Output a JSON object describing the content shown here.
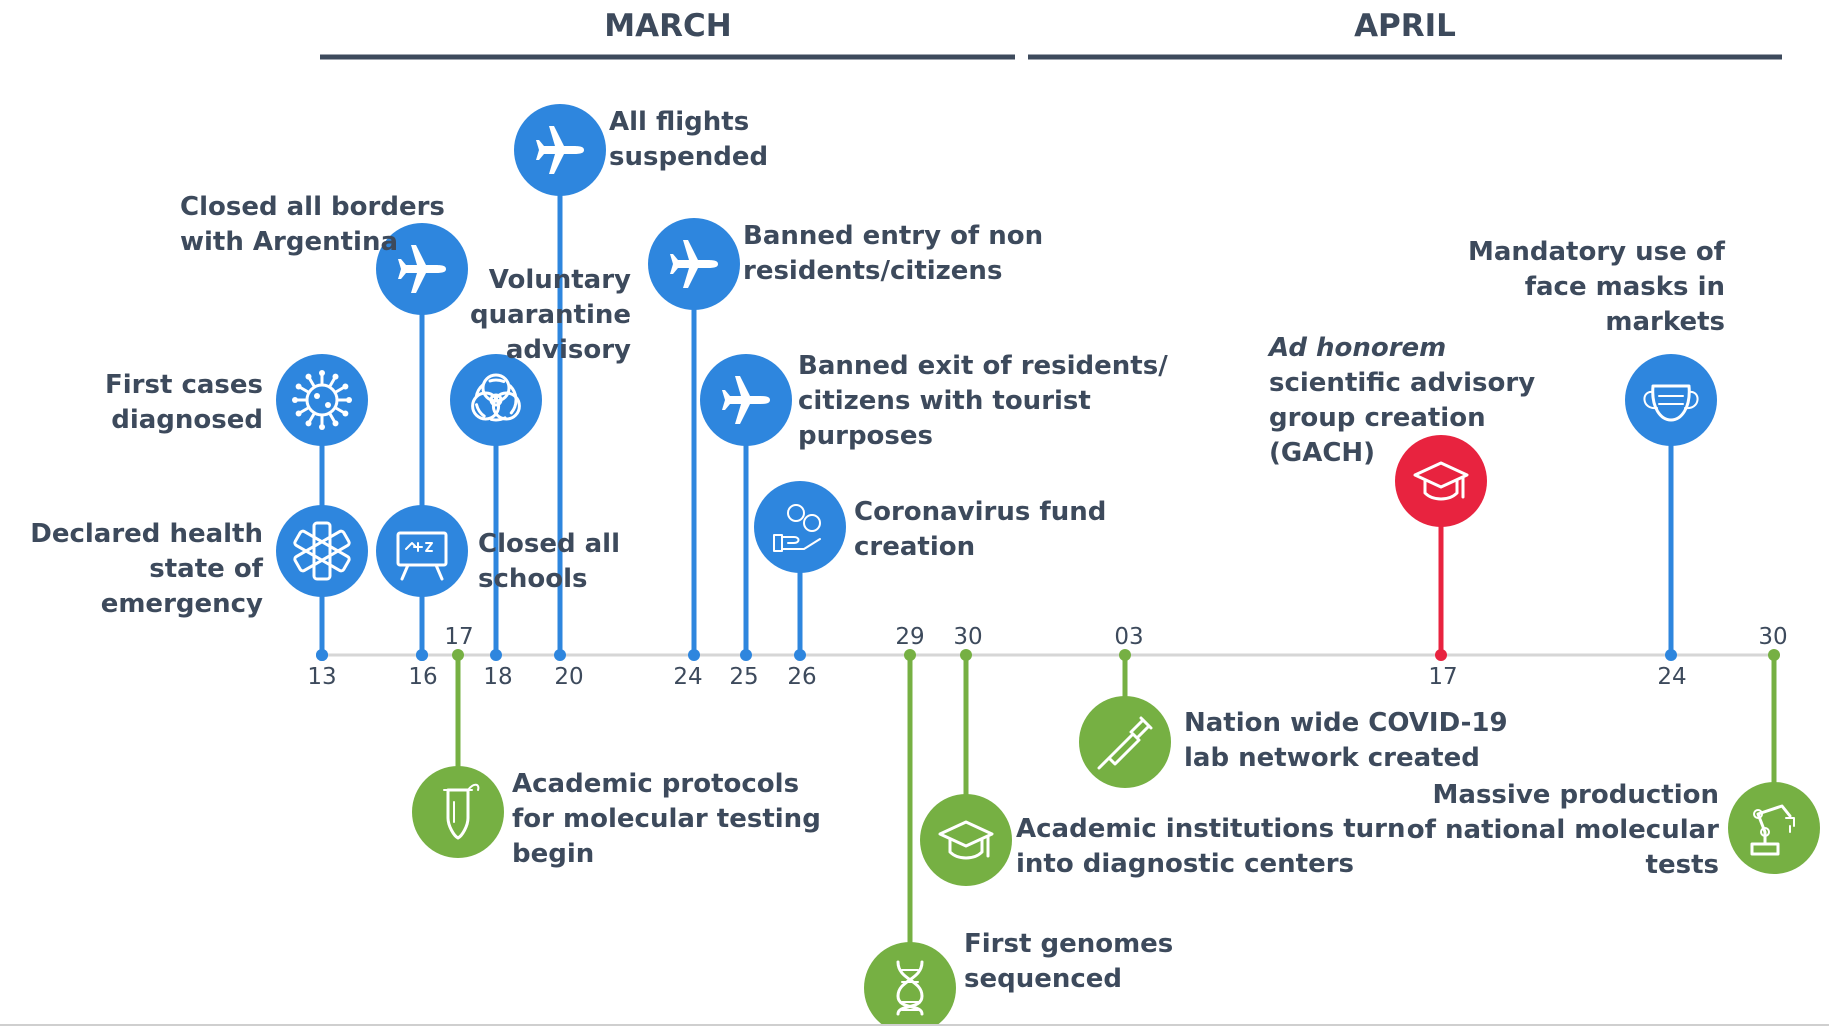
{
  "months": [
    {
      "label": "MARCH"
    },
    {
      "label": "APRIL"
    }
  ],
  "colors": {
    "measure": "#2e86de",
    "science": "#76b043",
    "advisory": "#e8233f",
    "axis": "#d6d6d6",
    "text": "#3d4a5c"
  },
  "dates_above": [
    "17",
    "29",
    "30",
    "03",
    "30"
  ],
  "dates_below": [
    "13",
    "16",
    "18",
    "20",
    "24",
    "25",
    "26",
    "17",
    "24"
  ],
  "events": [
    {
      "id": "first-cases",
      "text": "First cases\ndiagnosed",
      "icon": "virus-icon",
      "category": "measure"
    },
    {
      "id": "health-emergency",
      "text": "Declared health\nstate of emergency",
      "icon": "star-of-life-icon",
      "category": "measure"
    },
    {
      "id": "closed-borders",
      "text": "Closed all borders\nwith Argentina",
      "icon": "airplane-icon",
      "category": "measure"
    },
    {
      "id": "closed-schools",
      "text": "Closed all\nschools",
      "icon": "blackboard-icon",
      "category": "measure"
    },
    {
      "id": "voluntary-quarantine",
      "text": "Voluntary\nquarantine\nadvisory",
      "icon": "biohazard-icon",
      "category": "measure"
    },
    {
      "id": "flights-suspended",
      "text": "All flights\nsuspended",
      "icon": "airplane-icon",
      "category": "measure"
    },
    {
      "id": "banned-entry",
      "text": "Banned entry of non\nresidents/citizens",
      "icon": "airplane-icon",
      "category": "measure"
    },
    {
      "id": "banned-exit",
      "text": "Banned exit of residents/\ncitizens with tourist\npurposes",
      "icon": "airplane-icon",
      "category": "measure"
    },
    {
      "id": "coronavirus-fund",
      "text": "Coronavirus fund\ncreation",
      "icon": "money-hand-icon",
      "category": "measure"
    },
    {
      "id": "advisory-group",
      "text_em": "Ad honorem",
      "text": "scientific advisory\ngroup creation\n(GACH)",
      "icon": "graduation-cap-icon",
      "category": "advisory"
    },
    {
      "id": "face-masks",
      "text": "Mandatory use of\nface masks in\nmarkets",
      "icon": "face-mask-icon",
      "category": "measure"
    },
    {
      "id": "academic-protocols",
      "text": "Academic protocols\nfor molecular testing\nbegin",
      "icon": "test-tube-icon",
      "category": "science"
    },
    {
      "id": "first-genomes",
      "text": "First genomes\nsequenced",
      "icon": "dna-icon",
      "category": "science"
    },
    {
      "id": "academic-institutions",
      "text": "Academic institutions turn\ninto diagnostic centers",
      "icon": "graduation-cap-icon",
      "category": "science"
    },
    {
      "id": "lab-network",
      "text": "Nation wide COVID-19\nlab network created",
      "icon": "pipette-icon",
      "category": "science"
    },
    {
      "id": "massive-production",
      "text": "Massive production\nof national molecular\ntests",
      "icon": "robot-arm-icon",
      "category": "science"
    }
  ]
}
